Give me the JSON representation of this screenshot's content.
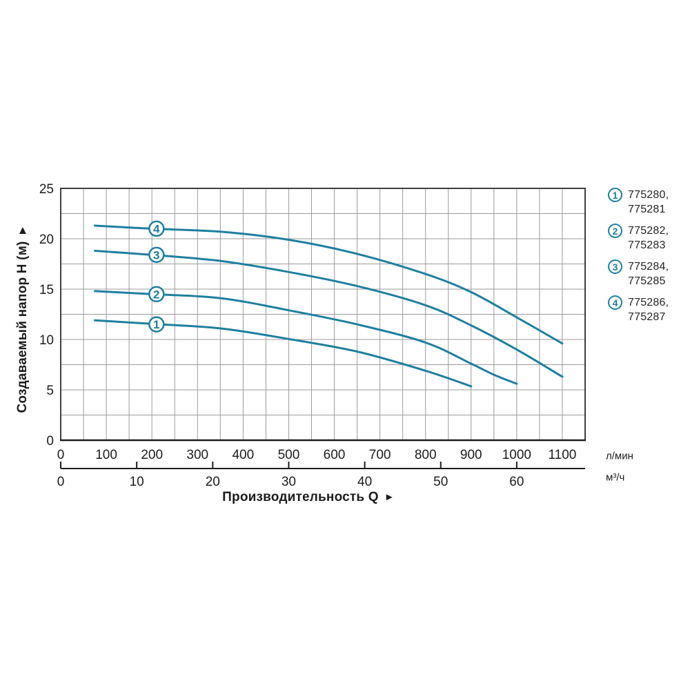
{
  "colors": {
    "curve": "#1e7f9f",
    "grid": "#9b9b9b",
    "plot_border": "#3f3f3f",
    "axis_text": "#1c1c1c"
  },
  "icons": {
    "y_axis_arrow_icon": "▲",
    "x_axis_arrow_icon": "►"
  },
  "y_axis": {
    "title": "Создаваемый напор H (м)",
    "tick_labels": [
      "0",
      "5",
      "10",
      "15",
      "20",
      "25"
    ]
  },
  "x_axis_primary": {
    "unit": "л/мин",
    "tick_labels": [
      "0",
      "100",
      "200",
      "300",
      "400",
      "500",
      "600",
      "700",
      "800",
      "900",
      "1000",
      "1100"
    ]
  },
  "x_axis_secondary": {
    "unit": "м³/ч",
    "tick_labels": [
      "0",
      "10",
      "20",
      "30",
      "40",
      "50",
      "60"
    ]
  },
  "x_axis_title": "Производительность Q",
  "legend": {
    "items": [
      {
        "num": "1",
        "line1": "775280,",
        "line2": "775281"
      },
      {
        "num": "2",
        "line1": "775282,",
        "line2": "775283"
      },
      {
        "num": "3",
        "line1": "775284,",
        "line2": "775285"
      },
      {
        "num": "4",
        "line1": "775286,",
        "line2": "775287"
      }
    ]
  },
  "chart_data": {
    "type": "line",
    "title": "",
    "xlabel": "Производительность Q",
    "ylabel": "Создаваемый напор H (м)",
    "x_units": [
      "л/мин",
      "м³/ч"
    ],
    "xlim_lmin": [
      0,
      1150
    ],
    "ylim": [
      0,
      25
    ],
    "x_grid_step_lmin": 50,
    "y_grid_step": 2.5,
    "x_tick_step_lmin": 100,
    "x_ticks_m3h": [
      0,
      10,
      20,
      30,
      40,
      50,
      60
    ],
    "lmin_per_m3h": 16.6667,
    "grid": true,
    "legend_position": "right",
    "series": [
      {
        "id": "1",
        "name": "775280, 775281",
        "x_lmin": [
          75,
          200,
          350,
          500,
          650,
          800,
          900
        ],
        "head_m": [
          11.9,
          11.55,
          11.1,
          10.05,
          8.8,
          6.9,
          5.35
        ],
        "label_marker": {
          "x_lmin": 210,
          "head_m": 11.5
        }
      },
      {
        "id": "2",
        "name": "775282, 775283",
        "x_lmin": [
          75,
          200,
          350,
          500,
          650,
          800,
          900,
          950,
          1000
        ],
        "head_m": [
          14.8,
          14.5,
          14.1,
          12.9,
          11.5,
          9.7,
          7.6,
          6.5,
          5.6
        ],
        "label_marker": {
          "x_lmin": 210,
          "head_m": 14.5
        }
      },
      {
        "id": "3",
        "name": "775284, 775285",
        "x_lmin": [
          75,
          200,
          350,
          500,
          650,
          800,
          900,
          1000,
          1100
        ],
        "head_m": [
          18.8,
          18.4,
          17.8,
          16.7,
          15.3,
          13.4,
          11.4,
          9.0,
          6.3
        ],
        "label_marker": {
          "x_lmin": 210,
          "head_m": 18.4
        }
      },
      {
        "id": "4",
        "name": "775286, 775287",
        "x_lmin": [
          75,
          200,
          350,
          500,
          650,
          800,
          900,
          1000,
          1100
        ],
        "head_m": [
          21.3,
          21.0,
          20.7,
          19.9,
          18.5,
          16.5,
          14.7,
          12.2,
          9.6
        ],
        "label_marker": {
          "x_lmin": 210,
          "head_m": 21.0
        }
      }
    ]
  }
}
